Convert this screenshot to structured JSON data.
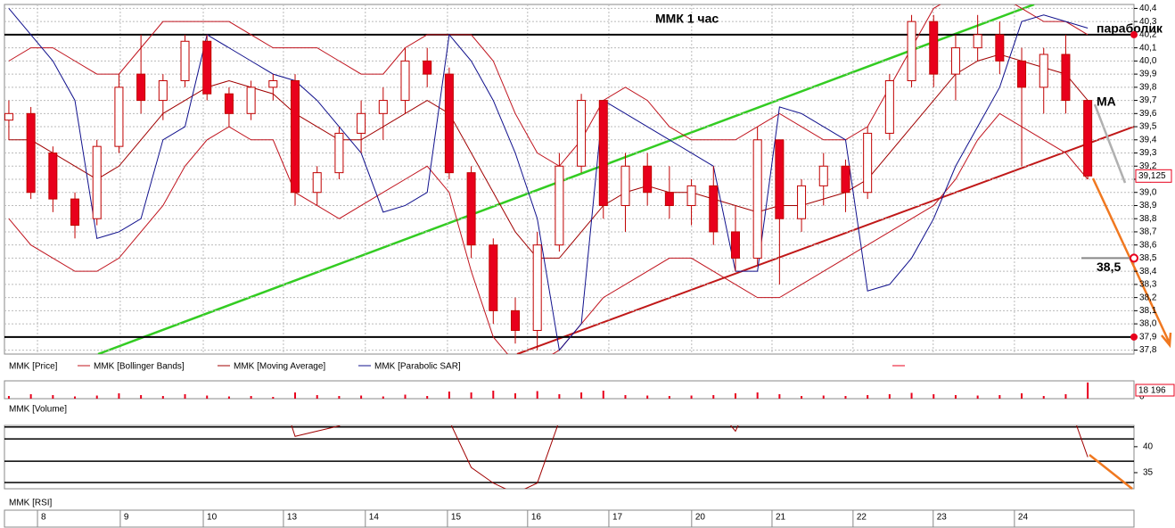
{
  "chart_data": {
    "type": "candlestick",
    "title": "ММК   1 час",
    "annotations": {
      "parabolic": "параболик",
      "ma": "MA"
    },
    "legend": [
      "MMK [Price]",
      "MMK [Bollinger Bands]",
      "MMK [Moving Average]",
      "MMK [Parabolic SAR]"
    ],
    "volume_title": "MMK [Volume]",
    "rsi_title": "MMK [RSI]",
    "colors": {
      "down": "#e8001c",
      "up": "#ffffff",
      "edge": "#c00000",
      "bollinger": "#c0141e",
      "ma": "#a00000",
      "sar": "#10108c",
      "rsi": "#a00000",
      "volume": "#e8001c"
    },
    "xlim": [
      -0.2,
      51.1
    ],
    "xticks": [
      {
        "value": 1.3,
        "label": "8"
      },
      {
        "value": 5.06,
        "label": "9"
      },
      {
        "value": 8.83,
        "label": "10"
      },
      {
        "value": 12.47,
        "label": "13"
      },
      {
        "value": 16.19,
        "label": "14"
      },
      {
        "value": 19.92,
        "label": "15"
      },
      {
        "value": 23.56,
        "label": "16"
      },
      {
        "value": 27.25,
        "label": "17"
      },
      {
        "value": 31.01,
        "label": "20"
      },
      {
        "value": 34.66,
        "label": "21"
      },
      {
        "value": 38.34,
        "label": "22"
      },
      {
        "value": 41.98,
        "label": "23"
      },
      {
        "value": 45.67,
        "label": "24"
      }
    ],
    "ylim": [
      37.77,
      40.43
    ],
    "yticks": [
      {
        "value": 37.8,
        "label": "37,8"
      },
      {
        "value": 37.9,
        "label": "37,9"
      },
      {
        "value": 38.0,
        "label": "38,0"
      },
      {
        "value": 38.1,
        "label": "38,1"
      },
      {
        "value": 38.2,
        "label": "38,2"
      },
      {
        "value": 38.3,
        "label": "38,3"
      },
      {
        "value": 38.4,
        "label": "38,4"
      },
      {
        "value": 38.5,
        "label": "38,5"
      },
      {
        "value": 38.6,
        "label": "38,6"
      },
      {
        "value": 38.7,
        "label": "38,7"
      },
      {
        "value": 38.8,
        "label": "38,8"
      },
      {
        "value": 38.9,
        "label": "38,9"
      },
      {
        "value": 39.0,
        "label": "39,0"
      },
      {
        "value": 39.1,
        "label": "39,1"
      },
      {
        "value": 39.2,
        "label": "39,2"
      },
      {
        "value": 39.3,
        "label": "39,3"
      },
      {
        "value": 39.4,
        "label": "39,4"
      },
      {
        "value": 39.5,
        "label": "39,5"
      },
      {
        "value": 39.6,
        "label": "39,6"
      },
      {
        "value": 39.7,
        "label": "39,7"
      },
      {
        "value": 39.8,
        "label": "39,8"
      },
      {
        "value": 39.9,
        "label": "39,9"
      },
      {
        "value": 40.0,
        "label": "40,0"
      },
      {
        "value": 40.1,
        "label": "40,1"
      },
      {
        "value": 40.2,
        "label": "40,2"
      },
      {
        "value": 40.3,
        "label": "40,3"
      },
      {
        "value": 40.4,
        "label": "40,4"
      }
    ],
    "grid": true,
    "levels": [
      {
        "value": 40.2
      },
      {
        "value": 37.9
      },
      {
        "value": 38.5,
        "label": "38,5"
      }
    ],
    "last_price": {
      "value": 39.125,
      "label": "39,125"
    },
    "candles": [
      [
        39.55,
        39.7,
        39.4,
        39.6
      ],
      [
        39.6,
        39.65,
        38.95,
        39.0
      ],
      [
        39.3,
        39.35,
        38.85,
        38.95
      ],
      [
        38.95,
        39.0,
        38.65,
        38.75
      ],
      [
        38.8,
        39.4,
        38.75,
        39.35
      ],
      [
        39.35,
        39.9,
        39.3,
        39.8
      ],
      [
        39.9,
        40.2,
        39.6,
        39.7
      ],
      [
        39.7,
        39.9,
        39.55,
        39.85
      ],
      [
        39.85,
        40.2,
        39.8,
        40.15
      ],
      [
        40.15,
        40.2,
        39.7,
        39.75
      ],
      [
        39.75,
        39.8,
        39.5,
        39.6
      ],
      [
        39.6,
        39.85,
        39.55,
        39.8
      ],
      [
        39.8,
        39.9,
        39.7,
        39.85
      ],
      [
        39.85,
        39.9,
        38.9,
        39.0
      ],
      [
        39.0,
        39.2,
        38.9,
        39.15
      ],
      [
        39.15,
        39.5,
        39.1,
        39.45
      ],
      [
        39.45,
        39.7,
        39.3,
        39.6
      ],
      [
        39.6,
        39.8,
        39.4,
        39.7
      ],
      [
        39.7,
        40.1,
        39.6,
        40.0
      ],
      [
        40.0,
        40.1,
        39.8,
        39.9
      ],
      [
        39.9,
        39.95,
        39.1,
        39.15
      ],
      [
        39.15,
        39.2,
        38.5,
        38.6
      ],
      [
        38.6,
        38.65,
        38.0,
        38.1
      ],
      [
        38.1,
        38.2,
        37.85,
        37.95
      ],
      [
        37.95,
        38.7,
        37.8,
        38.6
      ],
      [
        38.6,
        39.3,
        38.55,
        39.2
      ],
      [
        39.2,
        39.75,
        39.15,
        39.7
      ],
      [
        39.7,
        39.7,
        38.8,
        38.9
      ],
      [
        38.9,
        39.3,
        38.7,
        39.2
      ],
      [
        39.2,
        39.3,
        38.9,
        39.0
      ],
      [
        39.0,
        39.2,
        38.8,
        38.9
      ],
      [
        38.9,
        39.1,
        38.75,
        39.05
      ],
      [
        39.05,
        39.2,
        38.6,
        38.7
      ],
      [
        38.7,
        38.9,
        38.4,
        38.5
      ],
      [
        38.5,
        39.5,
        38.45,
        39.4
      ],
      [
        39.4,
        39.4,
        38.3,
        38.8
      ],
      [
        38.8,
        39.1,
        38.7,
        39.05
      ],
      [
        39.05,
        39.3,
        38.9,
        39.2
      ],
      [
        39.2,
        39.25,
        38.85,
        39.0
      ],
      [
        39.0,
        39.5,
        38.95,
        39.45
      ],
      [
        39.45,
        39.9,
        39.4,
        39.85
      ],
      [
        39.85,
        40.35,
        39.8,
        40.3
      ],
      [
        40.3,
        40.35,
        39.8,
        39.9
      ],
      [
        39.9,
        40.2,
        39.7,
        40.1
      ],
      [
        40.1,
        40.35,
        40.0,
        40.2
      ],
      [
        40.2,
        40.3,
        39.9,
        40.0
      ],
      [
        40.0,
        40.1,
        39.2,
        39.8
      ],
      [
        39.8,
        40.1,
        39.6,
        40.05
      ],
      [
        40.05,
        40.2,
        39.6,
        39.7
      ],
      [
        39.7,
        39.7,
        39.1,
        39.125
      ]
    ],
    "ma": [
      39.4,
      39.4,
      39.3,
      39.2,
      39.1,
      39.2,
      39.4,
      39.6,
      39.7,
      39.8,
      39.85,
      39.8,
      39.75,
      39.6,
      39.5,
      39.4,
      39.4,
      39.5,
      39.6,
      39.7,
      39.6,
      39.3,
      39.0,
      38.7,
      38.5,
      38.5,
      38.7,
      38.9,
      39.0,
      39.05,
      39.0,
      39.0,
      38.95,
      38.9,
      38.85,
      38.9,
      38.9,
      38.95,
      39.0,
      39.1,
      39.3,
      39.5,
      39.7,
      39.9,
      40.0,
      40.05,
      40.0,
      39.95,
      39.9,
      39.7
    ],
    "bollinger_upper": [
      40.0,
      40.1,
      40.1,
      40.0,
      39.9,
      39.9,
      40.1,
      40.3,
      40.3,
      40.3,
      40.3,
      40.2,
      40.1,
      40.1,
      40.1,
      40.0,
      39.9,
      39.9,
      40.1,
      40.2,
      40.2,
      40.2,
      40.0,
      39.6,
      39.3,
      39.2,
      39.4,
      39.7,
      39.8,
      39.7,
      39.5,
      39.4,
      39.4,
      39.4,
      39.5,
      39.6,
      39.5,
      39.4,
      39.4,
      39.5,
      39.8,
      40.1,
      40.4,
      40.5,
      40.5,
      40.5,
      40.4,
      40.3,
      40.3,
      40.2
    ],
    "bollinger_lower": [
      38.8,
      38.6,
      38.5,
      38.4,
      38.4,
      38.5,
      38.7,
      38.9,
      39.2,
      39.4,
      39.5,
      39.4,
      39.4,
      39.0,
      38.9,
      38.8,
      38.9,
      39.0,
      39.1,
      39.2,
      39.0,
      38.4,
      37.9,
      37.7,
      37.7,
      37.8,
      38.0,
      38.2,
      38.3,
      38.4,
      38.5,
      38.5,
      38.4,
      38.3,
      38.2,
      38.2,
      38.3,
      38.4,
      38.5,
      38.6,
      38.7,
      38.8,
      38.9,
      39.1,
      39.4,
      39.6,
      39.5,
      39.4,
      39.3,
      39.1
    ],
    "sar": [
      40.4,
      40.2,
      40.0,
      39.7,
      38.65,
      38.7,
      38.8,
      39.4,
      39.5,
      40.2,
      40.1,
      40.0,
      39.9,
      39.85,
      39.7,
      39.5,
      39.3,
      38.85,
      38.9,
      39.0,
      40.2,
      40.0,
      39.7,
      39.3,
      38.8,
      37.8,
      38.0,
      39.7,
      39.6,
      39.5,
      39.4,
      39.3,
      39.2,
      38.4,
      38.4,
      39.65,
      39.6,
      39.5,
      39.4,
      38.25,
      38.3,
      38.5,
      38.8,
      39.2,
      39.5,
      39.8,
      40.3,
      40.35,
      40.3,
      40.25
    ],
    "volume": [
      3000,
      5000,
      4000,
      2500,
      3500,
      6000,
      4000,
      3000,
      5000,
      3500,
      2500,
      3000,
      2000,
      7000,
      4000,
      3000,
      3500,
      2500,
      4500,
      3000,
      8000,
      7000,
      9000,
      6000,
      8500,
      5000,
      7000,
      9000,
      4000,
      3500,
      3000,
      3500,
      4000,
      6000,
      7000,
      5000,
      3000,
      3500,
      3000,
      4000,
      5000,
      6500,
      5000,
      4000,
      3500,
      4000,
      6000,
      3000,
      5000,
      18196
    ],
    "volume_ylim": [
      0,
      20000
    ],
    "volume_yticks": [
      0
    ],
    "volume_label": {
      "value": 18196,
      "label": "18 196"
    },
    "rsi": [
      50,
      45,
      46,
      46,
      52,
      55,
      55,
      53,
      56,
      55,
      52,
      54,
      55,
      42,
      43,
      44,
      47,
      50,
      54,
      52,
      45,
      36,
      33,
      31,
      33,
      45,
      52,
      48,
      50,
      49,
      48,
      49,
      48,
      43,
      52,
      47,
      49,
      51,
      49,
      53,
      56,
      60,
      55,
      57,
      58,
      56,
      50,
      52,
      50,
      38
    ],
    "rsi_ylim": [
      31.9,
      44.1
    ],
    "rsi_yticks": [
      35,
      40
    ],
    "rsi_levels": [
      43.8,
      41.5,
      37.2,
      33.1
    ]
  }
}
